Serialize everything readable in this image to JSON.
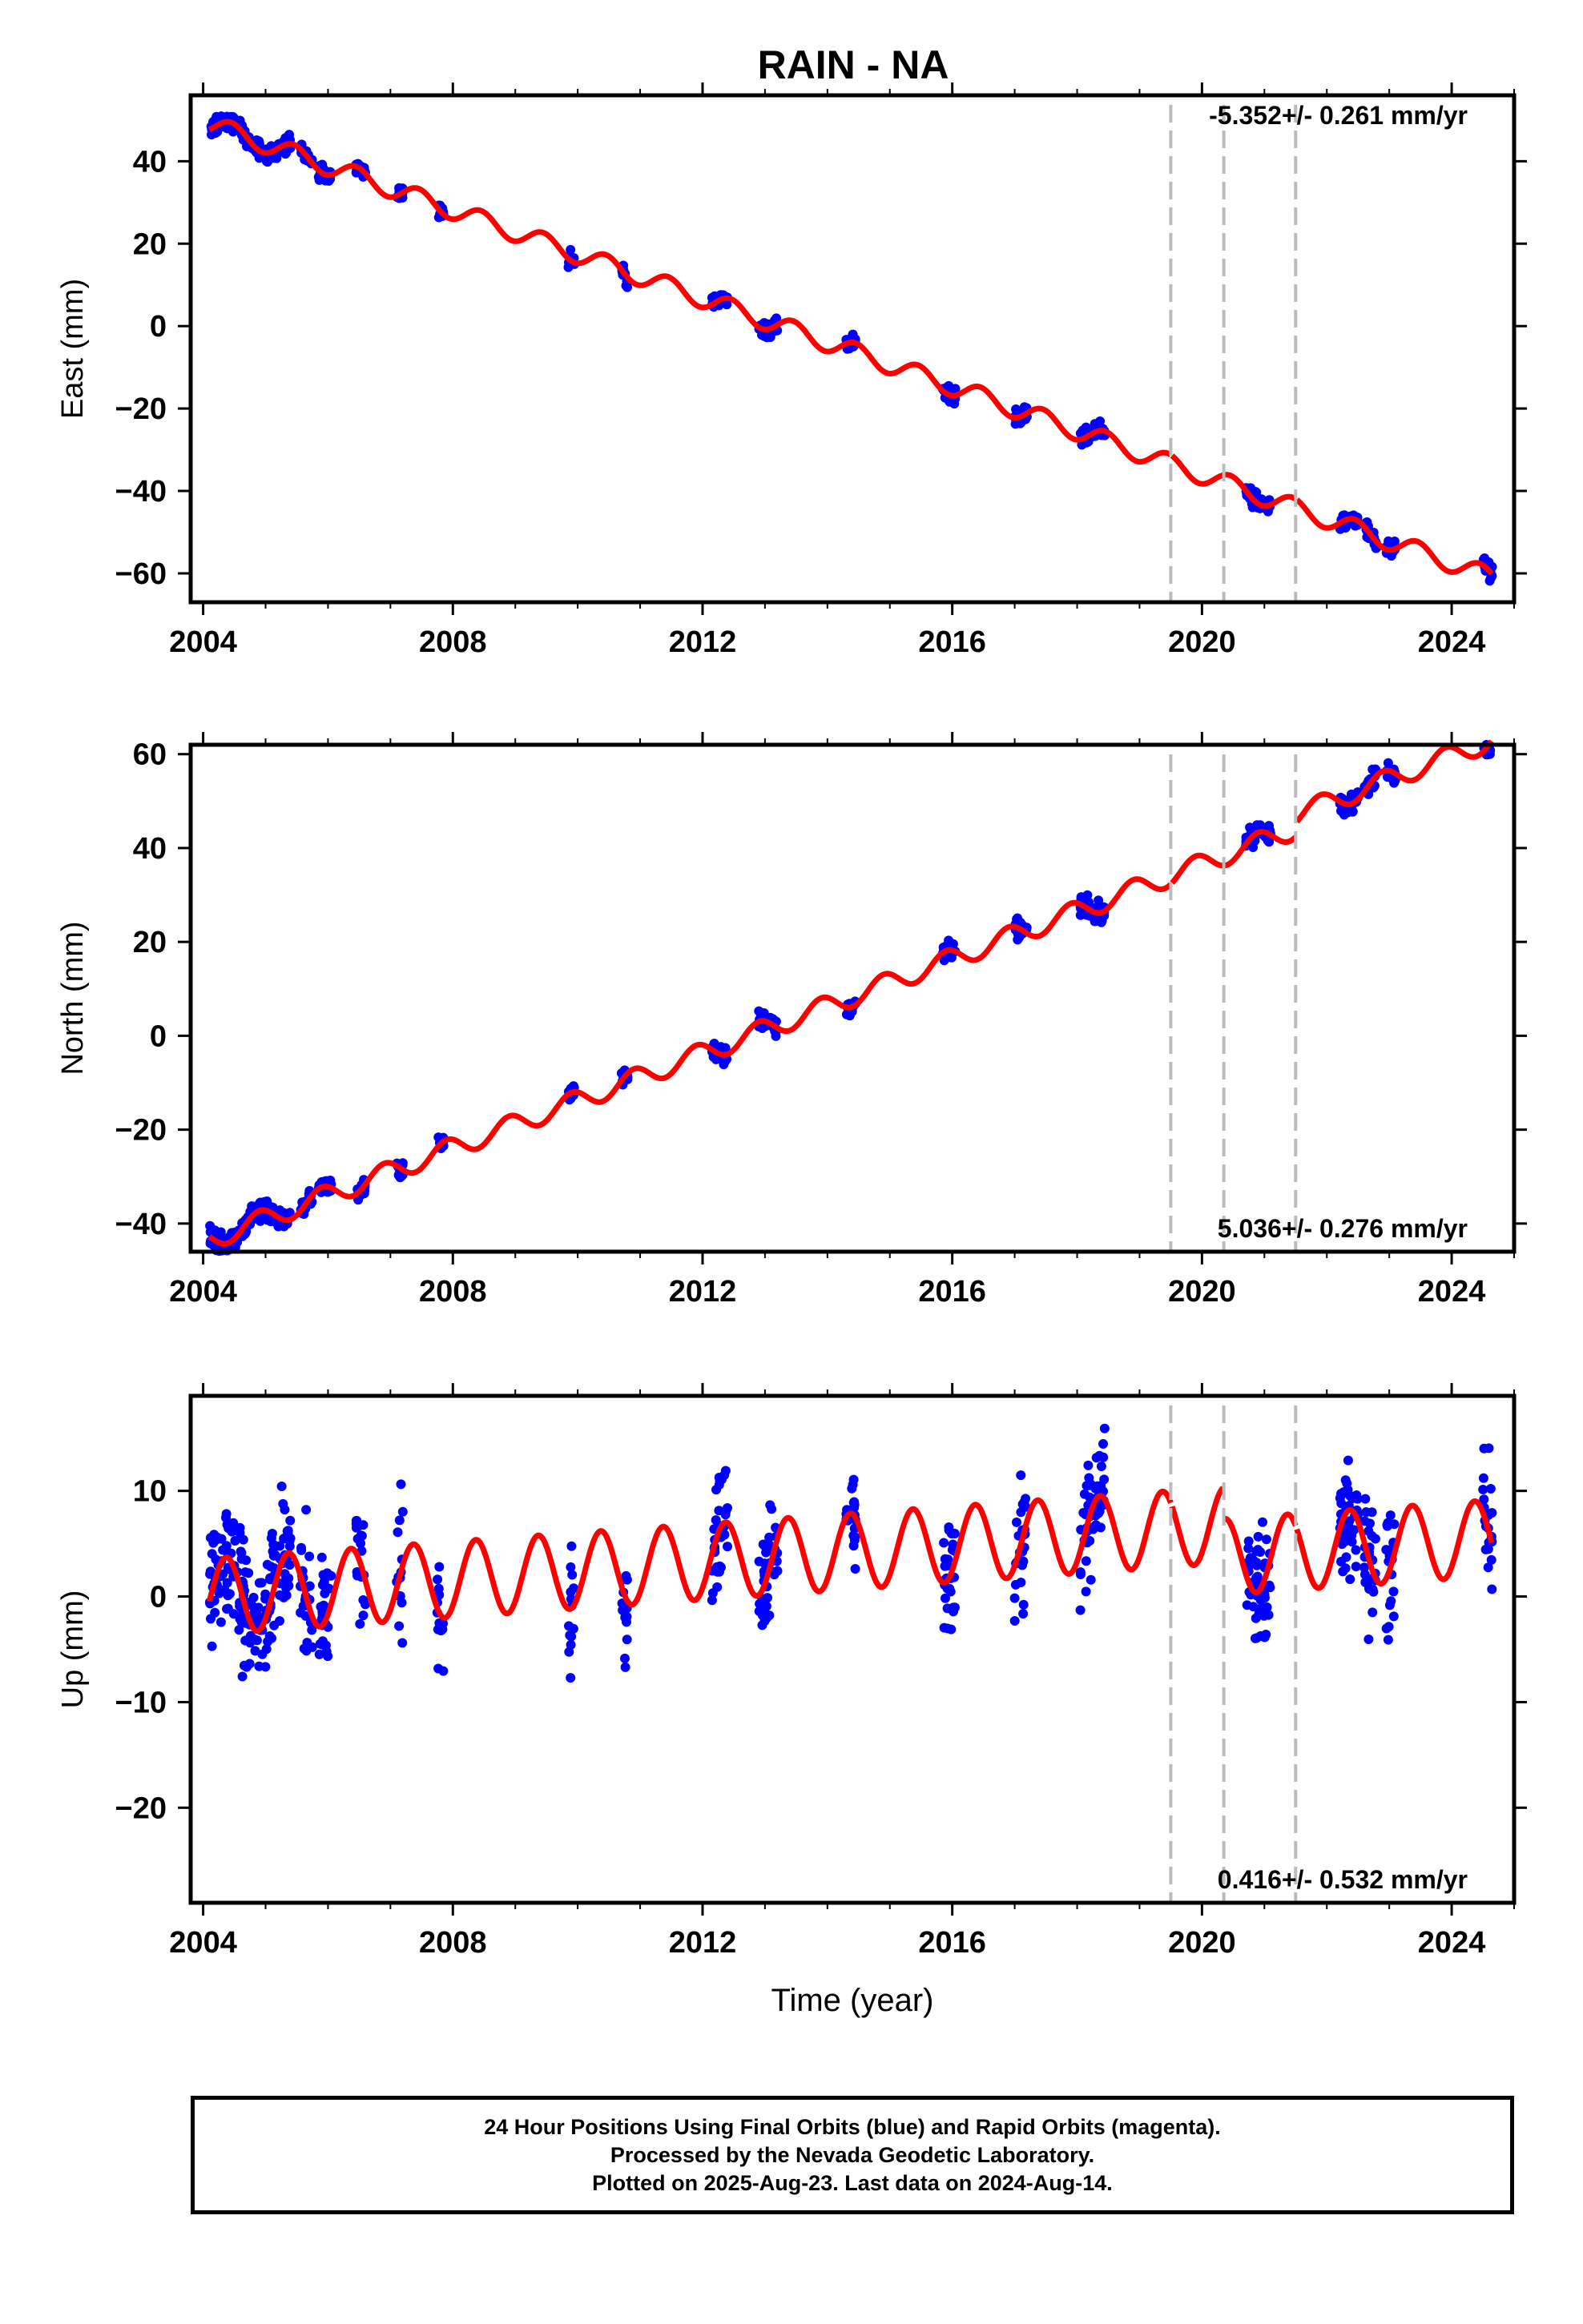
{
  "title": "RAIN - NA",
  "footer": {
    "line1": "24 Hour Positions Using Final Orbits (blue) and Rapid Orbits (magenta).",
    "line2": "Processed by the Nevada Geodetic Laboratory.",
    "line3": "Plotted on 2025-Aug-23. Last data on 2024-Aug-14."
  },
  "chart_data": [
    {
      "type": "scatter",
      "component": "East",
      "ylabel": "East (mm)",
      "xlabel": "",
      "rate_label": "-5.352+/- 0.261 mm/yr",
      "xlim": [
        2003.8,
        2025.0
      ],
      "ylim": [
        -67,
        56
      ],
      "xticks": [
        2004,
        2008,
        2012,
        2016,
        2020,
        2024
      ],
      "yticks": [
        -60,
        -40,
        -20,
        0,
        20,
        40
      ],
      "model": {
        "offset": 49.0,
        "rate": -5.352,
        "amp": 2.3,
        "phase": 0.2
      },
      "data_segments": [
        [
          2004.1,
          2004.45
        ],
        [
          2004.45,
          2005.4
        ],
        [
          2005.55,
          2005.75
        ],
        [
          2005.85,
          2006.05
        ],
        [
          2006.45,
          2006.6
        ],
        [
          2007.1,
          2007.2
        ],
        [
          2007.75,
          2007.85
        ],
        [
          2009.85,
          2009.95
        ],
        [
          2010.7,
          2010.8
        ],
        [
          2012.15,
          2012.4
        ],
        [
          2012.9,
          2013.2
        ],
        [
          2014.3,
          2014.45
        ],
        [
          2015.85,
          2016.05
        ],
        [
          2017.0,
          2017.2
        ],
        [
          2018.05,
          2018.45
        ],
        [
          2020.7,
          2021.1
        ],
        [
          2022.2,
          2022.5
        ],
        [
          2022.6,
          2022.8
        ],
        [
          2022.95,
          2023.1
        ],
        [
          2024.5,
          2024.65
        ]
      ],
      "breaks": [
        2019.5,
        2020.35,
        2021.5
      ],
      "break_offsets": [
        0,
        0,
        0
      ]
    },
    {
      "type": "scatter",
      "component": "North",
      "ylabel": "North (mm)",
      "xlabel": "",
      "rate_label": "5.036+/- 0.276 mm/yr",
      "xlim": [
        2003.8,
        2025.0
      ],
      "ylim": [
        -46,
        62
      ],
      "xticks": [
        2004,
        2008,
        2012,
        2016,
        2020,
        2024
      ],
      "yticks": [
        -40,
        -20,
        0,
        20,
        40,
        60
      ],
      "model": {
        "offset": -43.5,
        "rate": 5.036,
        "amp": 2.2,
        "phase": 0.65
      },
      "data_segments": [
        [
          2004.1,
          2004.45
        ],
        [
          2004.45,
          2005.4
        ],
        [
          2005.55,
          2005.75
        ],
        [
          2005.85,
          2006.05
        ],
        [
          2006.45,
          2006.6
        ],
        [
          2007.1,
          2007.2
        ],
        [
          2007.75,
          2007.85
        ],
        [
          2009.85,
          2009.95
        ],
        [
          2010.7,
          2010.8
        ],
        [
          2012.15,
          2012.4
        ],
        [
          2012.9,
          2013.2
        ],
        [
          2014.3,
          2014.45
        ],
        [
          2015.85,
          2016.05
        ],
        [
          2017.0,
          2017.2
        ],
        [
          2018.05,
          2018.45
        ],
        [
          2020.7,
          2021.1
        ],
        [
          2022.2,
          2022.5
        ],
        [
          2022.6,
          2022.8
        ],
        [
          2022.95,
          2023.1
        ],
        [
          2024.5,
          2024.65
        ]
      ],
      "breaks": [
        2019.5,
        2020.35,
        2021.5
      ],
      "break_offsets": [
        0,
        0,
        3
      ]
    },
    {
      "type": "scatter",
      "component": "Up",
      "ylabel": "Up (mm)",
      "xlabel": "Time (year)",
      "rate_label": "0.416+/- 0.532 mm/yr",
      "xlim": [
        2003.8,
        2025.0
      ],
      "ylim": [
        -29,
        19
      ],
      "xticks": [
        2004,
        2008,
        2012,
        2016,
        2020,
        2024
      ],
      "yticks": [
        -20,
        -10,
        0,
        10
      ],
      "model": {
        "offset": 0.0,
        "rate": 0.416,
        "amp": 3.6,
        "phase": 0.12
      },
      "data_segments": [
        [
          2004.1,
          2004.45
        ],
        [
          2004.45,
          2005.4
        ],
        [
          2005.55,
          2005.75
        ],
        [
          2005.85,
          2006.05
        ],
        [
          2006.45,
          2006.6
        ],
        [
          2007.1,
          2007.2
        ],
        [
          2007.75,
          2007.85
        ],
        [
          2009.85,
          2009.95
        ],
        [
          2010.7,
          2010.8
        ],
        [
          2012.15,
          2012.4
        ],
        [
          2012.9,
          2013.2
        ],
        [
          2014.3,
          2014.45
        ],
        [
          2015.85,
          2016.05
        ],
        [
          2017.0,
          2017.2
        ],
        [
          2018.05,
          2018.45
        ],
        [
          2020.7,
          2021.1
        ],
        [
          2022.2,
          2022.5
        ],
        [
          2022.6,
          2022.8
        ],
        [
          2022.95,
          2023.1
        ],
        [
          2024.5,
          2024.65
        ]
      ],
      "breaks": [
        2019.5,
        2020.35,
        2021.5
      ],
      "break_offsets": [
        0,
        -3,
        -3
      ]
    }
  ]
}
